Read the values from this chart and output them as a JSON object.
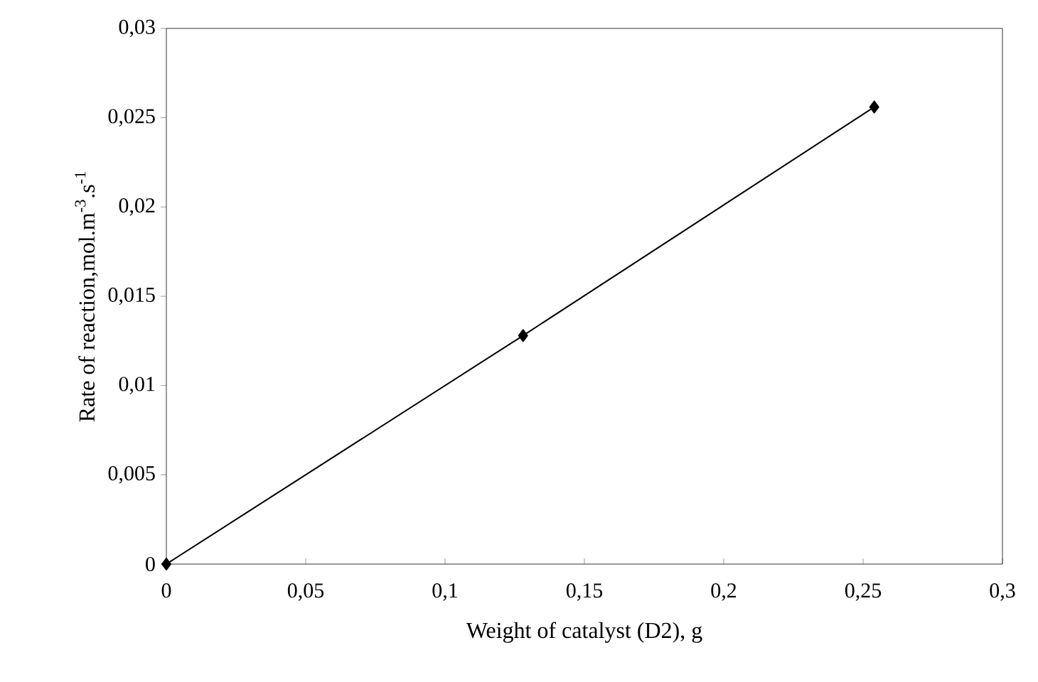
{
  "chart_data": {
    "type": "line",
    "xlabel": "Weight of catalyst (D2), g",
    "ylabel": "Rate of reaction,mol.m$^{-3}$.s$^{-1}$",
    "x": [
      0,
      0.128,
      0.254
    ],
    "series": [
      {
        "color": "#000000",
        "values": [
          0,
          0.0128,
          0.0256
        ]
      }
    ],
    "xlim": [
      0,
      0.3
    ],
    "ylim": [
      0,
      0.03
    ],
    "xticks": [
      0,
      {
        "value": 0.05,
        "label": "0,05"
      },
      {
        "value": 0.1,
        "label": "0,1"
      },
      {
        "value": 0.15,
        "label": "0,15"
      },
      {
        "value": 0.2,
        "label": "0,2"
      },
      {
        "value": 0.25,
        "label": "0,25"
      },
      {
        "value": 0.3,
        "label": "0,3"
      }
    ],
    "yticks": [
      0,
      {
        "value": 0.005,
        "label": "0,005"
      },
      {
        "value": 0.01,
        "label": "0,01"
      },
      {
        "value": 0.015,
        "label": "0,015"
      },
      {
        "value": 0.02,
        "label": "0,02"
      },
      {
        "value": 0.025,
        "label": "0,025"
      },
      {
        "value": 0.03,
        "label": "0,03"
      }
    ],
    "marker": "diamond",
    "line_style": "solid"
  }
}
